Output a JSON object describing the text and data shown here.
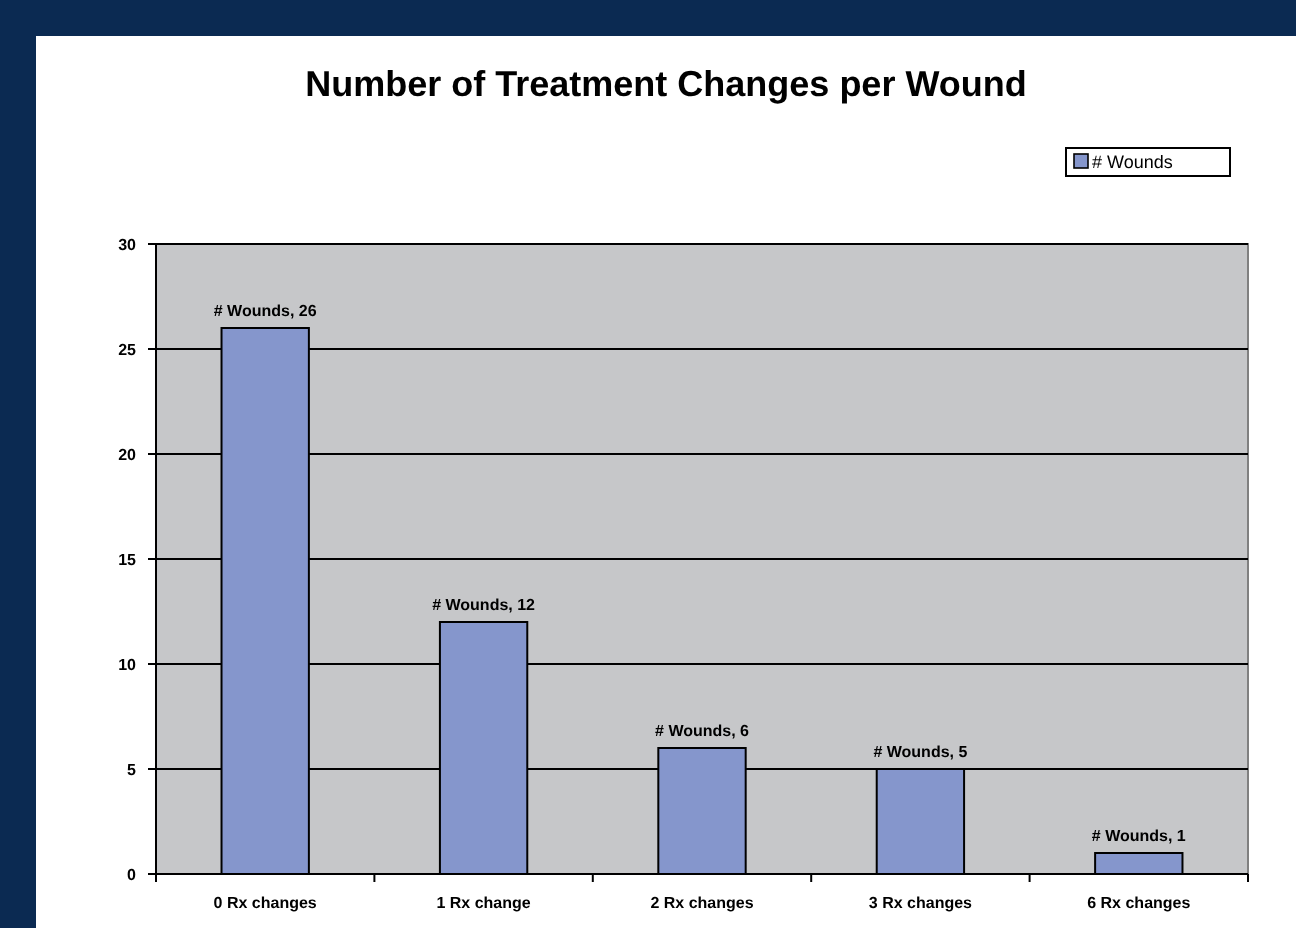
{
  "chart_data": {
    "type": "bar",
    "title": "Number of Treatment Changes per Wound",
    "categories": [
      "0 Rx changes",
      "1 Rx change",
      "2 Rx changes",
      "3 Rx changes",
      "6 Rx changes"
    ],
    "series": [
      {
        "name": "# Wounds",
        "color": "#8596cc",
        "values": [
          26,
          12,
          6,
          5,
          1
        ],
        "value_labels": [
          "# Wounds, 26",
          "# Wounds, 12",
          "# Wounds, 6",
          "# Wounds, 5",
          "# Wounds, 1"
        ]
      }
    ],
    "ylim": [
      0,
      30
    ],
    "yticks": [
      0,
      5,
      10,
      15,
      20,
      25,
      30
    ],
    "grid": "y",
    "legend": "top right"
  }
}
